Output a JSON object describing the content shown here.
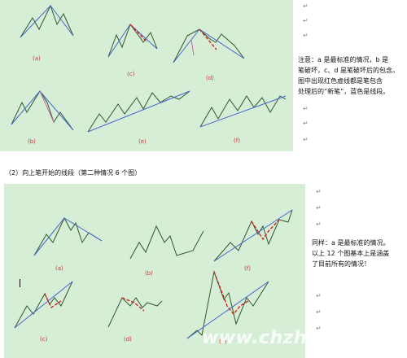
{
  "panels": {
    "top": {
      "labels": [
        "(a)",
        "(c)",
        "(d)",
        "(b)",
        "(e)",
        "(f)"
      ]
    },
    "bottom": {
      "labels": [
        "(a)",
        "(b)",
        "(f)",
        "(c)",
        "(d)",
        "(e)"
      ]
    }
  },
  "notes": {
    "top": [
      "注意：a 是最标准的情况，b 是",
      "笔破坏，c、d 是笔破坏后的包含。",
      "图中出现红色虚线都是笔包含",
      "处理后的“新笔”，蓝色是线段。"
    ],
    "bottom": [
      "同样：a 是最标准的情况。",
      "以上 12 个图基本上是涵盖",
      "了目前所有的情况！"
    ]
  },
  "section_heading": "（2）向上笔开始的线段（第二种情况 6 个图）",
  "watermark": "www.chzhshch.net",
  "colors": {
    "panel": "#d6eed6",
    "zigzag": "#2c5a2c",
    "segment": "#4466cc",
    "new_stroke": "#cc2222",
    "break_stroke": "#cc66aa"
  }
}
